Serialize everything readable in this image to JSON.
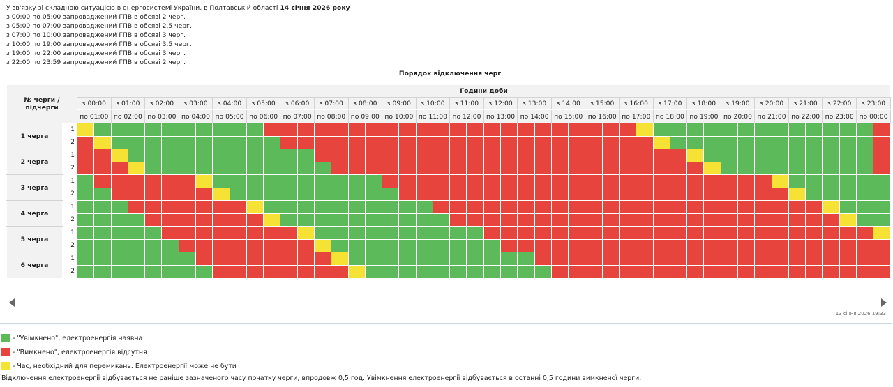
{
  "notice": {
    "intro": "У зв'язку зі складною ситуацією в енергосистемі України, в Полтавській області ",
    "date_bold": "14 січня 2026 року",
    "lines": [
      "з 00:00 по 05:00 запроваджений ГПВ в обсязі 2 черг.",
      "з 05:00 по 07:00 запроваджений ГПВ в обсязі 2.5 черг.",
      "з 07:00 по 10:00 запроваджений ГПВ в обсязі 3 черг.",
      "з 10:00 по 19:00 запроваджений ГПВ в обсязі 3.5 черг.",
      "з 19:00 по 22:00 запроваджений ГПВ в обсязі 3 черг.",
      "з 22:00 по 23:59 запроваджений ГПВ в обсязі 2 черг."
    ]
  },
  "caption": "Порядок відключення черг",
  "table": {
    "row_header": "№ черги / підчерги",
    "group_header": "Години доби",
    "hours_from": [
      "з 00:00",
      "з 01:00",
      "з 02:00",
      "з 03:00",
      "з 04:00",
      "з 05:00",
      "з 06:00",
      "з 07:00",
      "з 08:00",
      "з 09:00",
      "з 10:00",
      "з 11:00",
      "з 12:00",
      "з 13:00",
      "з 14:00",
      "з 15:00",
      "з 16:00",
      "з 17:00",
      "з 18:00",
      "з 19:00",
      "з 20:00",
      "з 21:00",
      "з 22:00",
      "з 23:00"
    ],
    "hours_to": [
      "по 01:00",
      "по 02:00",
      "по 03:00",
      "по 04:00",
      "по 05:00",
      "по 06:00",
      "по 07:00",
      "по 08:00",
      "по 09:00",
      "по 10:00",
      "по 11:00",
      "по 12:00",
      "по 13:00",
      "по 14:00",
      "по 15:00",
      "по 16:00",
      "по 17:00",
      "по 18:00",
      "по 19:00",
      "по 20:00",
      "по 21:00",
      "по 22:00",
      "по 23:00",
      "по 00:00"
    ],
    "queues": [
      {
        "label": "1 черга",
        "subs": [
          {
            "n": "1",
            "cells": "YGGGGGGGGGGRRRRRRRRRRRRRRRRRRRRRRYGGGGGGGGGGGGGRRRRRRRRRRRRRRRRRRRRRRRRRRYGGGGGGGGGGRRRRRR"
          },
          {
            "n": "2",
            "cells": "RYGGGGGGGGGGRRRRRRRRRRRRRRRRRRRRRRYGGGGGGGGGGGGRRRRRRRRRRRRRRRRRRRRRRRRRRRYGGGGGGGGGGGGRRR"
          }
        ]
      },
      {
        "label": "2 черга",
        "subs": [
          {
            "n": "1",
            "cells": "RRYGGGGGGGGGGGRRRRRRRRRRRRRRRRRRRRRRYGGGGGGGGGGRRRRRRRRRRRRRRRRRRRRRRRRRRRRRYGGGGGGGGGGGG"
          },
          {
            "n": "2",
            "cells": "RRRYGGGGGGGGGGGRRRRRRRRRRRRRRRRRRRRRRYGGGGGGGGGRRRRRRRRRRRRRRRRRRRRRRRRRRRRRRYGGGGGGGGGGG"
          }
        ]
      },
      {
        "label": "3 черга",
        "subs": [
          {
            "n": "1",
            "cells": "GRRRRRRYGGGGGGGGGGRRRRRRRRRRRRRRRRRRRRRRRYGGGGGGGGGGGRRRRRRRRRRRRRRRRRRRRRRRRRRRRYGGGGGGG"
          },
          {
            "n": "2",
            "cells": "GGRRRRRRYGGGGGGGGGGRRRRRRRRRRRRRRRRRRRRRRRYGGGGGGGGGGGRRRRRRRRRRRRRRRRRRRRRRRRRRRYGGGGGG"
          }
        ]
      },
      {
        "label": "4 черга",
        "subs": [
          {
            "n": "1",
            "cells": "GGGRRRRRRRYGGGGGGGGGGRRRRRRRRRRRRRRRRRRRRRRRYGGGGGGGGGGRRRRRRRRRRRRRRRRRRRRRRRRRRRYGGGGG"
          },
          {
            "n": "2",
            "cells": "GGGGRRRRRRRYGGGGGGGGGGRRRRRRRRRRRRRRRRRRRRRRRYGGGGGGGGGRRRRRRRRRRRRRRRRRRRRRRRRRRRRYGGGG"
          }
        ]
      },
      {
        "label": "5 черга",
        "subs": [
          {
            "n": "1",
            "cells": "GGGGGRRRRRRRRYGGGGGGGGGGRRRRRRRRRRRRRRRRRRRRRRRYGGGGGGGGGGRRRRRRRRRRRRRRRRRRRRRRRRRRYGGG"
          },
          {
            "n": "2",
            "cells": "GGGGGGRRRRRRRRYGGGGGGGGGGRRRRRRRRRRRRRRRRRRRRRRRYGGGGGGGGGRRRRRRRRRRRRRRRRRRRRRRRRRRRYGG"
          }
        ]
      },
      {
        "label": "6 черга",
        "subs": [
          {
            "n": "1",
            "cells": "GGGGGGGRRRRRRRRYGGGGGGGGGGGRRRRRRRRRRRRRRRRRRRRRRRYGGGGGGGGGRRRRRRRRRRRRRRRRRRRRRRRRRRYG"
          },
          {
            "n": "2",
            "cells": "GGGGGGGGRRRRRRRRYGGGGGGGGGGGRRRRRRRRRRRRRRRRRRRRRRRYGGGGGGGGGRRRRRRRRRRRRRRRRRRRRRRRRRRY"
          }
        ]
      }
    ]
  },
  "timestamp": "13 січня 2026 19:33",
  "legend": [
    {
      "color": "#5cba5a",
      "text": "- \"Увімкнено\", електроенергія наявна"
    },
    {
      "color": "#e8443e",
      "text": "- \"Вимкнено\", електроенергія відсутня"
    },
    {
      "color": "#f5e235",
      "text": "- Час, необхідний для перемикань. Електроенергії може не бути"
    }
  ],
  "footnote": "Відключення електроенергії відбувається не раніше зазначеного часу початку черги, впродовж 0,5 год. Увімкнення електроенергії відбувається в останні 0,5 години вимкненої черги.",
  "colors": {
    "on": "#5cba5a",
    "off": "#e8443e",
    "switch": "#f5e235"
  }
}
